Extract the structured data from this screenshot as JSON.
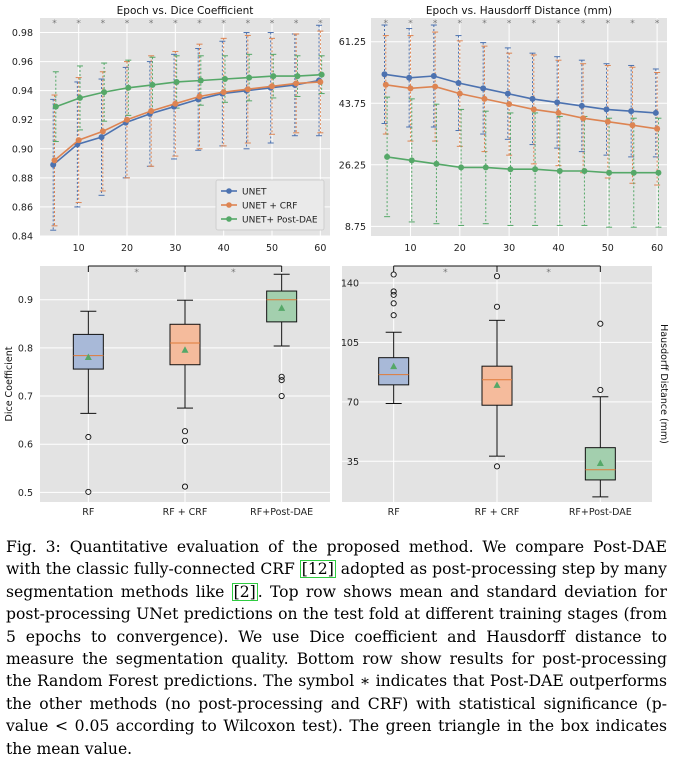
{
  "chart_data": [
    {
      "type": "line",
      "title": "Epoch vs. Dice Coefficient",
      "x": [
        5,
        10,
        15,
        20,
        25,
        30,
        35,
        40,
        45,
        50,
        55,
        60
      ],
      "xticks": [
        10,
        20,
        30,
        40,
        50,
        60
      ],
      "xlim": [
        2,
        62
      ],
      "yticks": [
        0.84,
        0.86,
        0.88,
        0.9,
        0.92,
        0.94,
        0.96,
        0.98
      ],
      "ytick_labels": [
        "0.84",
        "0.86",
        "0.88",
        "0.90",
        "0.92",
        "0.94",
        "0.96",
        "0.98"
      ],
      "ylim": [
        0.84,
        0.99
      ],
      "grid": true,
      "legend_position": "lower-right",
      "significance_marker": "*",
      "series": [
        {
          "name": "UNET",
          "color": "#4c72b0",
          "values": [
            0.889,
            0.903,
            0.908,
            0.918,
            0.924,
            0.929,
            0.934,
            0.938,
            0.94,
            0.942,
            0.944,
            0.947
          ],
          "errors": [
            0.045,
            0.043,
            0.04,
            0.038,
            0.036,
            0.036,
            0.035,
            0.036,
            0.04,
            0.038,
            0.035,
            0.038
          ]
        },
        {
          "name": "UNET + CRF",
          "color": "#dd8452",
          "values": [
            0.892,
            0.906,
            0.912,
            0.92,
            0.926,
            0.931,
            0.936,
            0.939,
            0.941,
            0.943,
            0.945,
            0.946
          ],
          "errors": [
            0.045,
            0.043,
            0.041,
            0.04,
            0.038,
            0.036,
            0.036,
            0.037,
            0.037,
            0.033,
            0.034,
            0.035
          ]
        },
        {
          "name": "UNET+ Post-DAE",
          "color": "#55a868",
          "values": [
            0.929,
            0.935,
            0.939,
            0.942,
            0.944,
            0.946,
            0.947,
            0.948,
            0.949,
            0.95,
            0.95,
            0.951
          ],
          "errors": [
            0.024,
            0.022,
            0.02,
            0.019,
            0.019,
            0.018,
            0.017,
            0.016,
            0.016,
            0.015,
            0.014,
            0.013
          ]
        }
      ]
    },
    {
      "type": "line",
      "title": "Epoch vs. Hausdorff Distance (mm)",
      "x": [
        5,
        10,
        15,
        20,
        25,
        30,
        35,
        40,
        45,
        50,
        55,
        60
      ],
      "xticks": [
        10,
        20,
        30,
        40,
        50,
        60
      ],
      "xlim": [
        2,
        62
      ],
      "yticks": [
        8.75,
        26.25,
        43.75,
        61.25
      ],
      "ytick_labels": [
        "8.75",
        "26.25",
        "43.75",
        "61.25"
      ],
      "ylim": [
        6,
        68
      ],
      "grid": true,
      "significance_marker": "*",
      "series": [
        {
          "name": "UNET",
          "color": "#4c72b0",
          "values": [
            52.0,
            51.0,
            51.5,
            49.5,
            48.0,
            46.5,
            45.0,
            44.0,
            43.0,
            42.0,
            41.5,
            41.0
          ],
          "errors": [
            14.0,
            14.0,
            14.5,
            13.5,
            13.0,
            13.0,
            13.0,
            13.0,
            13.0,
            13.0,
            13.0,
            12.5
          ]
        },
        {
          "name": "UNET + CRF",
          "color": "#dd8452",
          "values": [
            49.0,
            48.0,
            48.5,
            46.5,
            45.0,
            43.5,
            42.0,
            41.0,
            39.5,
            38.5,
            37.5,
            36.5
          ],
          "errors": [
            14.0,
            15.0,
            15.5,
            15.0,
            15.0,
            14.5,
            15.5,
            15.0,
            15.5,
            16.0,
            16.5,
            16.0
          ]
        },
        {
          "name": "UNET+ Post-DAE",
          "color": "#55a868",
          "values": [
            28.5,
            27.5,
            26.5,
            25.5,
            25.5,
            25.0,
            25.0,
            24.5,
            24.5,
            24.0,
            24.0,
            24.0
          ],
          "errors": [
            17.0,
            17.5,
            17.0,
            16.5,
            16.0,
            16.0,
            16.0,
            15.5,
            15.5,
            15.5,
            15.5,
            15.5
          ]
        }
      ]
    },
    {
      "type": "box",
      "ylabel": "Dice Coefficient",
      "categories": [
        "RF",
        "RF + CRF",
        "RF+Post-DAE"
      ],
      "yticks": [
        0.5,
        0.6,
        0.7,
        0.8,
        0.9
      ],
      "ytick_labels": [
        "0.5",
        "0.6",
        "0.7",
        "0.8",
        "0.9"
      ],
      "ylim": [
        0.48,
        0.97
      ],
      "grid": true,
      "significance_marker": "*",
      "boxes": [
        {
          "color": "#a8b9d8",
          "whisker_low": 0.664,
          "q1": 0.756,
          "median": 0.784,
          "q3": 0.828,
          "whisker_high": 0.876,
          "mean": 0.781,
          "outliers": [
            0.615,
            0.501
          ]
        },
        {
          "color": "#f5bb9c",
          "whisker_low": 0.675,
          "q1": 0.765,
          "median": 0.81,
          "q3": 0.849,
          "whisker_high": 0.899,
          "mean": 0.796,
          "outliers": [
            0.627,
            0.607,
            0.512
          ]
        },
        {
          "color": "#a3cfae",
          "whisker_low": 0.804,
          "q1": 0.854,
          "median": 0.9,
          "q3": 0.918,
          "whisker_high": 0.953,
          "mean": 0.883,
          "outliers": [
            0.74,
            0.733,
            0.7
          ]
        }
      ]
    },
    {
      "type": "box",
      "ylabel": "Hausdorff Distance (mm)",
      "categories": [
        "RF",
        "RF + CRF",
        "RF+Post-DAE"
      ],
      "yticks": [
        35,
        70,
        105,
        140
      ],
      "ytick_labels": [
        "35",
        "70",
        "105",
        "140"
      ],
      "ylim": [
        11,
        150
      ],
      "grid": true,
      "significance_marker": "*",
      "boxes": [
        {
          "color": "#a8b9d8",
          "whisker_low": 69,
          "q1": 80,
          "median": 86,
          "q3": 96,
          "whisker_high": 111,
          "mean": 91,
          "outliers": [
            145,
            135,
            133,
            128,
            121
          ]
        },
        {
          "color": "#f5bb9c",
          "whisker_low": 38,
          "q1": 68,
          "median": 83,
          "q3": 91,
          "whisker_high": 118,
          "mean": 80,
          "outliers": [
            144,
            126,
            32
          ]
        },
        {
          "color": "#a3cfae",
          "whisker_low": 14,
          "q1": 24,
          "median": 30,
          "q3": 43,
          "whisker_high": 73,
          "mean": 34,
          "outliers": [
            116,
            77
          ]
        }
      ]
    }
  ],
  "caption": {
    "fig_label": "Fig. 3:",
    "text_1": " Quantitative evaluation of the proposed method. We compare Post-DAE with the classic fully-connected CRF ",
    "cite_1": "[12]",
    "text_2": " adopted as post-processing step by many segmentation methods like ",
    "cite_2": "[2]",
    "text_3": ". Top row shows mean and standard deviation for post-processing UNet predictions on the test fold at different training stages (from 5 epochs to convergence). We use Dice coefficient and Hausdorff distance to measure the segmentation quality. Bottom row show results for post-processing the Random Forest predictions. The symbol ∗ indicates that Post-DAE outperforms the other methods (no post-processing and CRF) with statistical significance (p-value < 0.05 according to Wilcoxon test). The green triangle in the box indicates the mean value."
  }
}
